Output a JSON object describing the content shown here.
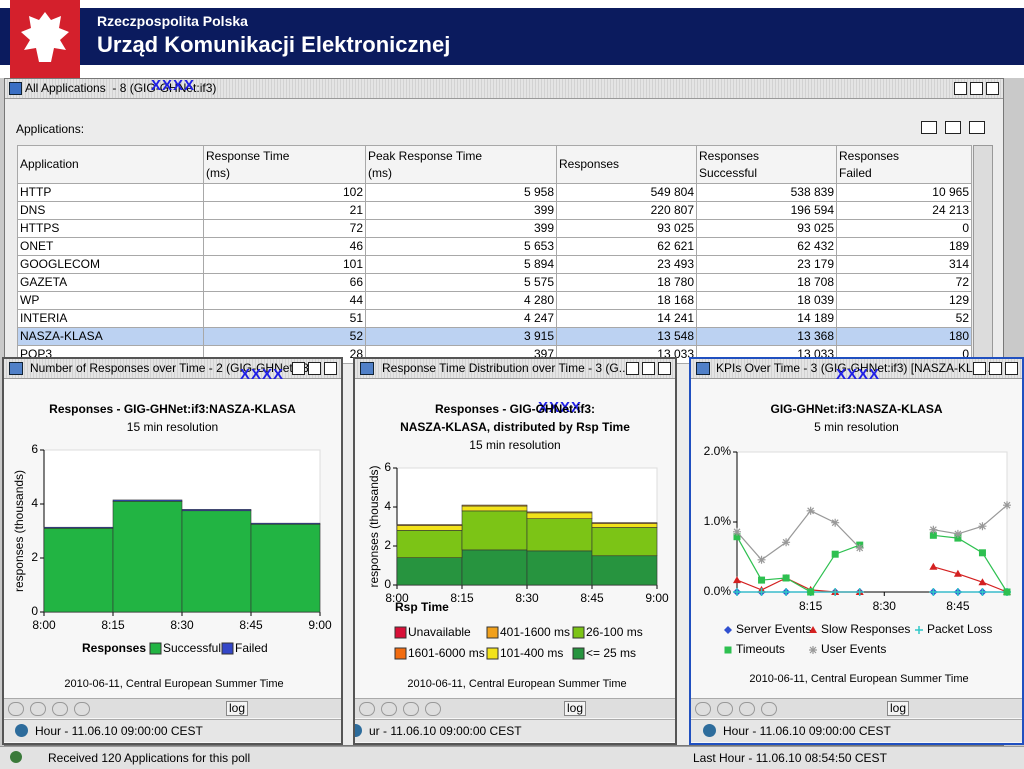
{
  "header": {
    "line1": "Rzeczpospolita Polska",
    "line2": "Urząd Komunikacji Elektronicznej"
  },
  "main_window": {
    "title": "All Applications  - 8 (GIG-GHNet:if3)",
    "overlay": "XXXX",
    "section_label": "Applications:"
  },
  "table": {
    "columns": [
      "Application",
      "Response Time\n(ms)",
      "Peak Response Time\n(ms)",
      "Responses",
      "Responses\nSuccessful",
      "Responses\nFailed"
    ],
    "rows": [
      [
        "HTTP",
        "102",
        "5 958",
        "549 804",
        "538 839",
        "10 965"
      ],
      [
        "DNS",
        "21",
        "399",
        "220 807",
        "196 594",
        "24 213"
      ],
      [
        "HTTPS",
        "72",
        "399",
        "93 025",
        "93 025",
        "0"
      ],
      [
        "ONET",
        "46",
        "5 653",
        "62 621",
        "62 432",
        "189"
      ],
      [
        "GOOGLECOM",
        "101",
        "5 894",
        "23 493",
        "23 179",
        "314"
      ],
      [
        "GAZETA",
        "66",
        "5 575",
        "18 780",
        "18 708",
        "72"
      ],
      [
        "WP",
        "44",
        "4 280",
        "18 168",
        "18 039",
        "129"
      ],
      [
        "INTERIA",
        "51",
        "4 247",
        "14 241",
        "14 189",
        "52"
      ],
      [
        "NASZA-KLASA",
        "52",
        "3 915",
        "13 548",
        "13 368",
        "180"
      ],
      [
        "POP3",
        "28",
        "397",
        "13 033",
        "13 033",
        "0"
      ]
    ],
    "selected_row": 8
  },
  "status_bar": {
    "message": "Received 120 Applications for this poll",
    "time": "Last Hour - 11.06.10 08:54:50 CEST"
  },
  "chart_data": [
    {
      "type": "bar",
      "window_title": "Number of Responses over Time - 2 (GIG-GHNet:if3)",
      "overlay": "XXXX",
      "title": "Responses - GIG-GHNet:if3:NASZA-KLASA",
      "subtitle": "15 min resolution",
      "ylabel": "responses (thousands)",
      "xticks": [
        "8:00",
        "8:15",
        "8:30",
        "8:45",
        "9:00"
      ],
      "ylim": [
        0,
        6
      ],
      "yticks": [
        0,
        2,
        4,
        6
      ],
      "legend_title": "Responses",
      "series": [
        {
          "name": "Successful",
          "color": "#22b443",
          "values": [
            3.1,
            4.1,
            3.75,
            3.25
          ]
        },
        {
          "name": "Failed",
          "color": "#3346c8",
          "values": [
            0.04,
            0.05,
            0.05,
            0.04
          ]
        }
      ],
      "footer": "2010-06-11, Central European Summer Time",
      "log_button": "log",
      "status": "Hour - 11.06.10 09:00:00 CEST"
    },
    {
      "type": "stacked_bar",
      "window_title": "Response Time Distribution over Time - 3 (G...",
      "overlay": "XXXX",
      "title": "Responses - GIG-GHNet:if3:\nNASZA-KLASA, distributed by Rsp Time",
      "subtitle": "15 min resolution",
      "ylabel": "responses (thousands)",
      "xticks": [
        "8:00",
        "8:15",
        "8:30",
        "8:45",
        "9:00"
      ],
      "ylim": [
        0,
        6
      ],
      "yticks": [
        0,
        2,
        4,
        6
      ],
      "legend_title": "Rsp Time",
      "series": [
        {
          "name": "<= 25 ms",
          "color": "#27943f",
          "values": [
            1.4,
            1.8,
            1.75,
            1.5
          ]
        },
        {
          "name": "26-100 ms",
          "color": "#7cc416",
          "values": [
            1.4,
            2.0,
            1.65,
            1.45
          ]
        },
        {
          "name": "101-400 ms",
          "color": "#f2e21a",
          "values": [
            0.25,
            0.25,
            0.3,
            0.2
          ]
        },
        {
          "name": "401-1600 ms",
          "color": "#f0a01c",
          "values": [
            0.05,
            0.05,
            0.05,
            0.05
          ]
        },
        {
          "name": "1601-6000 ms",
          "color": "#f26c10",
          "values": [
            0,
            0,
            0,
            0
          ]
        },
        {
          "name": "Unavailable",
          "color": "#d81038",
          "values": [
            0,
            0,
            0,
            0
          ]
        }
      ],
      "footer": "2010-06-11, Central European Summer Time",
      "log_button": "log",
      "status": "ur - 11.06.10 09:00:00 CEST"
    },
    {
      "type": "line",
      "window_title": "KPIs Over Time - 3 (GIG-GHNet:if3) [NASZA-KLA...",
      "overlay": "XXXX",
      "title": "GIG-GHNet:if3:NASZA-KLASA",
      "subtitle": "5 min resolution",
      "x": [
        "8:00",
        "8:05",
        "8:10",
        "8:15",
        "8:20",
        "8:25",
        "8:30",
        "8:35",
        "8:40",
        "8:45",
        "8:50",
        "8:55"
      ],
      "xlim": [
        "8:00",
        "8:55"
      ],
      "xticks": [
        "8:15",
        "8:30",
        "8:45"
      ],
      "ylim": [
        0,
        2
      ],
      "yticks": [
        {
          "value": 0,
          "label": "0.0%"
        },
        {
          "value": 1,
          "label": "1.0%"
        },
        {
          "value": 2,
          "label": "2.0%"
        }
      ],
      "series": [
        {
          "name": "Server Events",
          "color": "#3050d0",
          "marker": "diamond",
          "values": [
            0,
            0,
            0,
            0,
            0,
            0,
            null,
            null,
            0,
            0,
            0,
            0
          ]
        },
        {
          "name": "Slow Responses",
          "color": "#d42020",
          "marker": "triangle",
          "values": [
            0.17,
            0.03,
            0.2,
            0.03,
            0,
            0,
            null,
            null,
            0.36,
            0.26,
            0.14,
            0
          ]
        },
        {
          "name": "Packet Loss",
          "color": "#30c8c8",
          "marker": "plus",
          "values": [
            0,
            0,
            0,
            0,
            0,
            0,
            null,
            null,
            0,
            0,
            0,
            0
          ]
        },
        {
          "name": "Timeouts",
          "color": "#2ec050",
          "marker": "square",
          "values": [
            0.79,
            0.17,
            0.2,
            0,
            0.54,
            0.67,
            null,
            null,
            0.81,
            0.77,
            0.56,
            0
          ]
        },
        {
          "name": "User Events",
          "color": "#999999",
          "marker": "star",
          "values": [
            0.86,
            0.46,
            0.71,
            1.16,
            0.99,
            0.63,
            null,
            null,
            0.89,
            0.83,
            0.94,
            1.24
          ]
        }
      ],
      "footer": "2010-06-11, Central European Summer Time",
      "log_button": "log",
      "status": "Hour - 11.06.10 09:00:00 CEST"
    }
  ]
}
